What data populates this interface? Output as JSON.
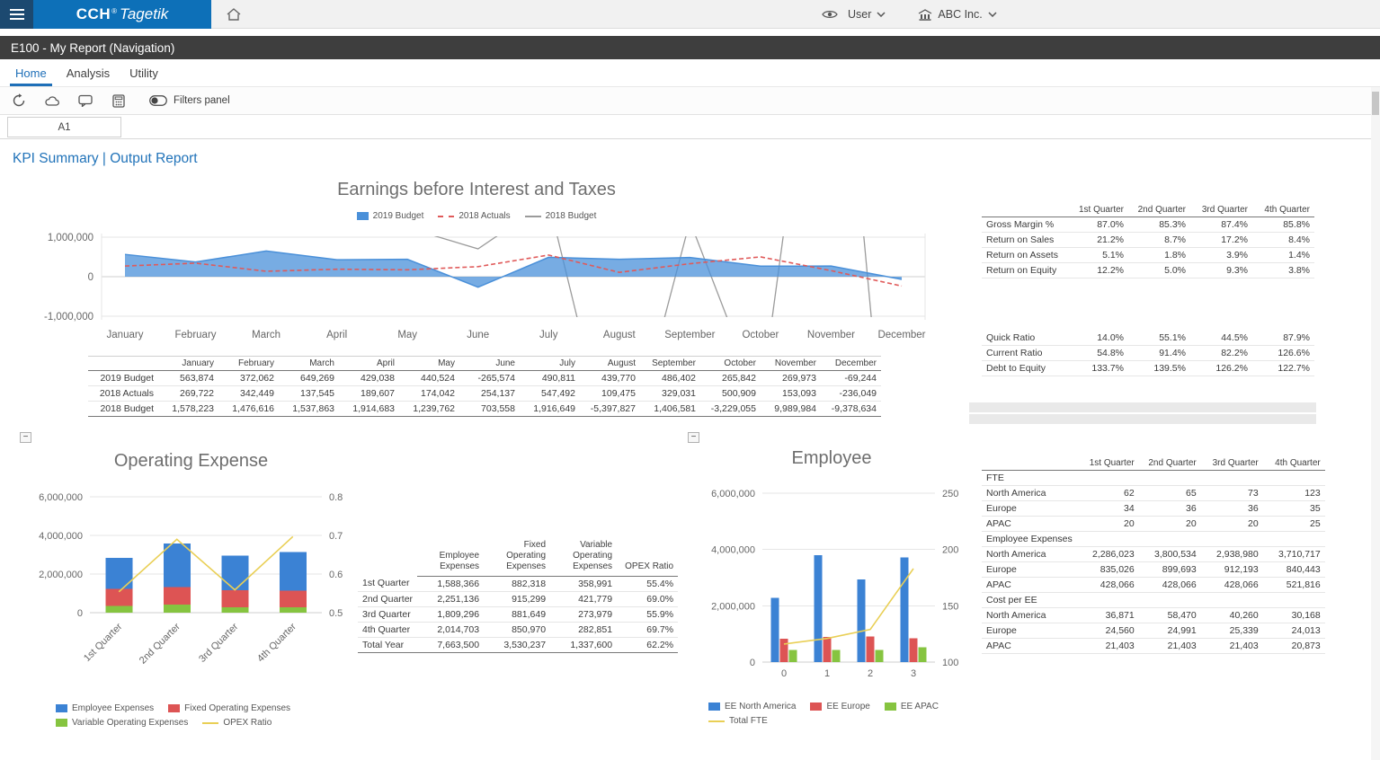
{
  "topbar": {
    "brand_cch": "CCH",
    "brand_reg": "®",
    "brand_tagetik": "Tagetik",
    "user_label": "User",
    "company_label": "ABC Inc."
  },
  "titlebar": {
    "title": "E100 - My Report (Navigation)"
  },
  "tabs": [
    {
      "label": "Home",
      "active": true
    },
    {
      "label": "Analysis",
      "active": false
    },
    {
      "label": "Utility",
      "active": false
    }
  ],
  "toolbar": {
    "icons": [
      "refresh-icon",
      "publish-icon",
      "comment-icon",
      "data-entry-icon"
    ],
    "filters_label": "Filters panel"
  },
  "name_box": "A1",
  "report_title": "KPI Summary | Output Report",
  "chart_data": [
    {
      "id": "ebit",
      "type": "line",
      "title": "Earnings before Interest and Taxes",
      "categories": [
        "January",
        "February",
        "March",
        "April",
        "May",
        "June",
        "July",
        "August",
        "September",
        "October",
        "November",
        "December"
      ],
      "ylim": [
        -1000000,
        1000000
      ],
      "yticks": [
        {
          "label": "1,000,000",
          "value": 1000000
        },
        {
          "label": "0",
          "value": 0
        },
        {
          "label": "-1,000,000",
          "value": -1000000
        }
      ],
      "series": [
        {
          "name": "2019 Budget",
          "style": "area",
          "color": "#4a90d9",
          "values": [
            563874,
            372062,
            649269,
            429038,
            440524,
            -265574,
            490811,
            439770,
            486402,
            265842,
            269973,
            -69244
          ]
        },
        {
          "name": "2018 Actuals",
          "style": "dash",
          "color": "#e05a5a",
          "values": [
            269722,
            342449,
            137545,
            189607,
            174042,
            254137,
            547492,
            109475,
            329031,
            500909,
            153093,
            -236049
          ]
        },
        {
          "name": "2018 Budget",
          "style": "line",
          "color": "#9b9b9b",
          "values": [
            1578223,
            1476616,
            1537863,
            1914683,
            1239762,
            703558,
            1916649,
            -5397827,
            1406581,
            -3229055,
            9989984,
            -9378634
          ]
        }
      ]
    },
    {
      "id": "opex",
      "type": "bar",
      "title": "Operating Expense",
      "categories": [
        "1st Quarter",
        "2nd Quarter",
        "3rd Quarter",
        "4th Quarter"
      ],
      "ylim_left": [
        0,
        6000000
      ],
      "yticks_left": [
        {
          "label": "6,000,000",
          "value": 6000000
        },
        {
          "label": "4,000,000",
          "value": 4000000
        },
        {
          "label": "2,000,000",
          "value": 2000000
        },
        {
          "label": "0",
          "value": 0
        }
      ],
      "ylim_right": [
        0.5,
        0.8
      ],
      "yticks_right": [
        {
          "label": "0.8",
          "value": 0.8
        },
        {
          "label": "0.7",
          "value": 0.7
        },
        {
          "label": "0.6",
          "value": 0.6
        },
        {
          "label": "0.5",
          "value": 0.5
        }
      ],
      "series": [
        {
          "name": "Employee Expenses",
          "style": "bar",
          "color": "#3b82d4",
          "values": [
            1588366,
            2251136,
            1809296,
            2014703
          ]
        },
        {
          "name": "Fixed Operating Expenses",
          "style": "bar",
          "color": "#dd5454",
          "values": [
            882318,
            915299,
            881649,
            850970
          ]
        },
        {
          "name": "Variable Operating Expenses",
          "style": "bar",
          "color": "#86c440",
          "values": [
            358991,
            421779,
            273979,
            282851
          ]
        }
      ],
      "stack_bottom_to_top": [
        "Variable Operating Expenses",
        "Fixed Operating Expenses",
        "Employee Expenses"
      ],
      "line_series": {
        "name": "OPEX Ratio",
        "style": "line",
        "color": "#e9cf55",
        "axis": "right",
        "values": [
          0.554,
          0.69,
          0.559,
          0.697
        ]
      }
    },
    {
      "id": "employee",
      "type": "bar",
      "title": "Employee",
      "categories": [
        "0",
        "1",
        "2",
        "3"
      ],
      "ylim_left": [
        0,
        6000000
      ],
      "yticks_left": [
        {
          "label": "6,000,000",
          "value": 6000000
        },
        {
          "label": "4,000,000",
          "value": 4000000
        },
        {
          "label": "2,000,000",
          "value": 2000000
        },
        {
          "label": "0",
          "value": 0
        }
      ],
      "ylim_right": [
        100,
        250
      ],
      "yticks_right": [
        {
          "label": "250",
          "value": 250
        },
        {
          "label": "200",
          "value": 200
        },
        {
          "label": "150",
          "value": 150
        },
        {
          "label": "100",
          "value": 100
        }
      ],
      "series": [
        {
          "name": "EE North America",
          "style": "bar",
          "color": "#3b82d4",
          "values": [
            2286023,
            3800534,
            2938980,
            3710717
          ]
        },
        {
          "name": "EE Europe",
          "style": "bar",
          "color": "#dd5454",
          "values": [
            835026,
            899693,
            912193,
            840443
          ]
        },
        {
          "name": "EE APAC",
          "style": "bar",
          "color": "#86c440",
          "values": [
            428066,
            428066,
            428066,
            521816
          ]
        }
      ],
      "line_series": {
        "name": "Total FTE",
        "style": "line",
        "color": "#e9cf55",
        "axis": "right",
        "values": [
          116,
          121,
          129,
          183
        ]
      }
    }
  ],
  "ebit_table": {
    "columns": [
      "January",
      "February",
      "March",
      "April",
      "May",
      "June",
      "July",
      "August",
      "September",
      "October",
      "November",
      "December"
    ],
    "rows": [
      {
        "label": "2019 Budget",
        "values": [
          "563,874",
          "372,062",
          "649,269",
          "429,038",
          "440,524",
          "-265,574",
          "490,811",
          "439,770",
          "486,402",
          "265,842",
          "269,973",
          "-69,244"
        ]
      },
      {
        "label": "2018 Actuals",
        "values": [
          "269,722",
          "342,449",
          "137,545",
          "189,607",
          "174,042",
          "254,137",
          "547,492",
          "109,475",
          "329,031",
          "500,909",
          "153,093",
          "-236,049"
        ]
      },
      {
        "label": "2018 Budget",
        "values": [
          "1,578,223",
          "1,476,616",
          "1,537,863",
          "1,914,683",
          "1,239,762",
          "703,558",
          "1,916,649",
          "-5,397,827",
          "1,406,581",
          "-3,229,055",
          "9,989,984",
          "-9,378,634"
        ]
      }
    ]
  },
  "ratio_table": {
    "columns": [
      "1st Quarter",
      "2nd Quarter",
      "3rd Quarter",
      "4th Quarter"
    ],
    "groups": [
      {
        "rows": [
          [
            "Gross Margin %",
            "87.0%",
            "85.3%",
            "87.4%",
            "85.8%"
          ],
          [
            "Return on Sales",
            "21.2%",
            "8.7%",
            "17.2%",
            "8.4%"
          ],
          [
            "Return on Assets",
            "5.1%",
            "1.8%",
            "3.9%",
            "1.4%"
          ],
          [
            "Return on Equity",
            "12.2%",
            "5.0%",
            "9.3%",
            "3.8%"
          ]
        ]
      },
      {
        "rows": [
          [
            "Quick Ratio",
            "14.0%",
            "55.1%",
            "44.5%",
            "87.9%"
          ],
          [
            "Current Ratio",
            "54.8%",
            "91.4%",
            "82.2%",
            "126.6%"
          ],
          [
            "Debt to Equity",
            "133.7%",
            "139.5%",
            "126.2%",
            "122.7%"
          ]
        ]
      }
    ]
  },
  "opex_table": {
    "columns": [
      "Employee\nExpenses",
      "Fixed\nOperating\nExpenses",
      "Variable\nOperating\nExpenses",
      "OPEX Ratio"
    ],
    "rows": [
      {
        "label": "1st Quarter",
        "values": [
          "1,588,366",
          "882,318",
          "358,991",
          "55.4%"
        ]
      },
      {
        "label": "2nd Quarter",
        "values": [
          "2,251,136",
          "915,299",
          "421,779",
          "69.0%"
        ]
      },
      {
        "label": "3rd Quarter",
        "values": [
          "1,809,296",
          "881,649",
          "273,979",
          "55.9%"
        ]
      },
      {
        "label": "4th Quarter",
        "values": [
          "2,014,703",
          "850,970",
          "282,851",
          "69.7%"
        ]
      },
      {
        "label": "Total Year",
        "values": [
          "7,663,500",
          "3,530,237",
          "1,337,600",
          "62.2%"
        ]
      }
    ]
  },
  "employee_table": {
    "columns": [
      "1st Quarter",
      "2nd Quarter",
      "3rd Quarter",
      "4th Quarter"
    ],
    "sections": [
      {
        "title": "FTE",
        "rows": [
          [
            "North America",
            "62",
            "65",
            "73",
            "123"
          ],
          [
            "Europe",
            "34",
            "36",
            "36",
            "35"
          ],
          [
            "APAC",
            "20",
            "20",
            "20",
            "25"
          ]
        ]
      },
      {
        "title": "Employee Expenses",
        "rows": [
          [
            "North America",
            "2,286,023",
            "3,800,534",
            "2,938,980",
            "3,710,717"
          ],
          [
            "Europe",
            "835,026",
            "899,693",
            "912,193",
            "840,443"
          ],
          [
            "APAC",
            "428,066",
            "428,066",
            "428,066",
            "521,816"
          ]
        ]
      },
      {
        "title": "Cost per EE",
        "rows": [
          [
            "North America",
            "36,871",
            "58,470",
            "40,260",
            "30,168"
          ],
          [
            "Europe",
            "24,560",
            "24,991",
            "25,339",
            "24,013"
          ],
          [
            "APAC",
            "21,403",
            "21,403",
            "21,403",
            "20,873"
          ]
        ]
      }
    ]
  }
}
